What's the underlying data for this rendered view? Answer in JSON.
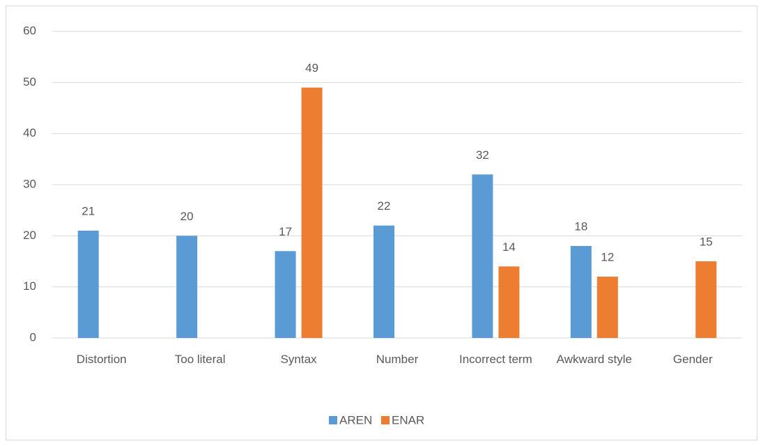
{
  "chart_data": {
    "type": "bar",
    "categories": [
      "Distortion",
      "Too literal",
      "Syntax",
      "Number",
      "Incorrect term",
      "Awkward style",
      "Gender"
    ],
    "series": [
      {
        "name": "AREN",
        "color": "#5b9bd5",
        "values": [
          21,
          20,
          17,
          22,
          32,
          18,
          null
        ]
      },
      {
        "name": "ENAR",
        "color": "#ed7d31",
        "values": [
          null,
          null,
          49,
          null,
          14,
          12,
          15
        ]
      }
    ],
    "ylim": [
      0,
      60
    ],
    "yticks": [
      0,
      10,
      20,
      30,
      40,
      50,
      60
    ],
    "grid": true,
    "legend": "bottom"
  }
}
